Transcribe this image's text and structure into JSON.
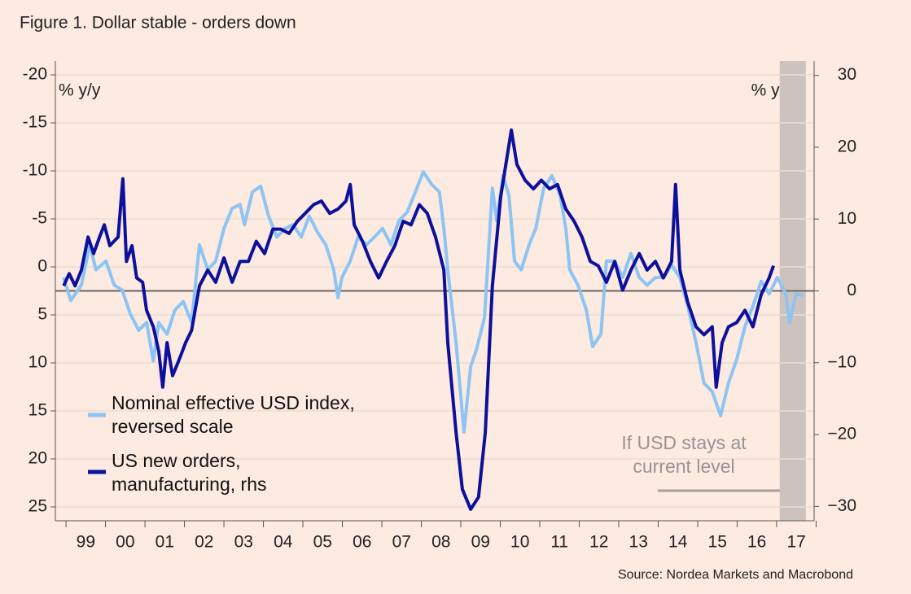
{
  "chart_data": {
    "type": "line",
    "title": "Figure 1. Dollar stable - orders down",
    "source": "Source: Nordea Markets and Macrobond",
    "annotation": "If USD stays at current level",
    "ylabel": "% y/y",
    "y2label": "% y/y",
    "xlim": [
      1998.73,
      2017.95
    ],
    "xticks": [
      {
        "value": 1999.5,
        "label": "99"
      },
      {
        "value": 2000.5,
        "label": "00"
      },
      {
        "value": 2001.5,
        "label": "01"
      },
      {
        "value": 2002.5,
        "label": "02"
      },
      {
        "value": 2003.5,
        "label": "03"
      },
      {
        "value": 2004.5,
        "label": "04"
      },
      {
        "value": 2005.5,
        "label": "05"
      },
      {
        "value": 2006.5,
        "label": "06"
      },
      {
        "value": 2007.5,
        "label": "07"
      },
      {
        "value": 2008.5,
        "label": "08"
      },
      {
        "value": 2009.5,
        "label": "09"
      },
      {
        "value": 2010.5,
        "label": "10"
      },
      {
        "value": 2011.5,
        "label": "11"
      },
      {
        "value": 2012.5,
        "label": "12"
      },
      {
        "value": 2013.5,
        "label": "13"
      },
      {
        "value": 2014.5,
        "label": "14"
      },
      {
        "value": 2015.5,
        "label": "15"
      },
      {
        "value": 2016.5,
        "label": "16"
      },
      {
        "value": 2017.5,
        "label": "17"
      }
    ],
    "xminorticks": [
      1999,
      2000,
      2001,
      2002,
      2003,
      2004,
      2005,
      2006,
      2007,
      2008,
      2009,
      2010,
      2011,
      2012,
      2013,
      2014,
      2015,
      2016,
      2017,
      2018
    ],
    "ylim": [
      26.44,
      -21.44
    ],
    "yticks": [
      -20,
      -15,
      -10,
      -5,
      0,
      5,
      10,
      15,
      20,
      25
    ],
    "y2lim": [
      -32,
      32
    ],
    "y2ticks": [
      30,
      20,
      10,
      0,
      {
        "value": -10,
        "label": "−10"
      },
      {
        "value": -20,
        "label": "−20"
      },
      {
        "value": -30,
        "label": "−30"
      }
    ],
    "grid": true,
    "shaded_xlim": [
      2017.08,
      2017.74
    ],
    "series": [
      {
        "name": "Nominal effective USD index, reversed scale",
        "color": "#8cc4f4",
        "axis": "y",
        "x": [
          1998.94,
          1999.12,
          1999.39,
          1999.6,
          1999.76,
          2000.01,
          2000.22,
          2000.42,
          2000.63,
          2000.84,
          2001.04,
          2001.21,
          2001.35,
          2001.56,
          2001.76,
          2001.97,
          2002.18,
          2002.38,
          2002.59,
          2002.79,
          2003.0,
          2003.21,
          2003.41,
          2003.52,
          2003.72,
          2003.93,
          2004.13,
          2004.34,
          2004.55,
          2004.75,
          2004.96,
          2005.16,
          2005.37,
          2005.58,
          2005.78,
          2005.89,
          2005.99,
          2006.2,
          2006.4,
          2006.61,
          2006.81,
          2007.02,
          2007.23,
          2007.43,
          2007.64,
          2007.85,
          2008.05,
          2008.26,
          2008.46,
          2008.57,
          2008.67,
          2008.88,
          2009.08,
          2009.25,
          2009.39,
          2009.6,
          2009.8,
          2009.91,
          2010.07,
          2010.22,
          2010.36,
          2010.53,
          2010.73,
          2010.9,
          2011.1,
          2011.31,
          2011.52,
          2011.66,
          2011.76,
          2011.97,
          2012.18,
          2012.34,
          2012.55,
          2012.69,
          2012.9,
          2013.1,
          2013.31,
          2013.52,
          2013.72,
          2013.93,
          2014.13,
          2014.34,
          2014.55,
          2014.75,
          2014.96,
          2015.16,
          2015.37,
          2015.58,
          2015.78,
          2015.99,
          2016.2,
          2016.4,
          2016.61,
          2016.81,
          2017.02,
          2017.23,
          2017.33,
          2017.49,
          2017.68
        ],
        "values": [
          1.1,
          3.5,
          1.9,
          -2.3,
          0.3,
          -0.6,
          1.9,
          2.4,
          4.9,
          6.6,
          5.8,
          9.8,
          5.8,
          7,
          4.5,
          3.6,
          5.8,
          -2.3,
          0.3,
          -0.6,
          -4,
          -6.1,
          -6.5,
          -4.4,
          -7.8,
          -8.4,
          -5.3,
          -3.1,
          -4,
          -4.4,
          -3.1,
          -5.3,
          -3.6,
          -2.3,
          0.3,
          3.2,
          1.1,
          -0.6,
          -3.1,
          -2.3,
          -3.1,
          -4,
          -2.3,
          -4.8,
          -5.7,
          -7.8,
          -9.9,
          -8.6,
          -7.8,
          -4,
          0.3,
          7.9,
          17.2,
          10.4,
          8.7,
          5.3,
          -8.2,
          -4.8,
          -9.5,
          -7.4,
          -0.6,
          0.3,
          -2.3,
          -4,
          -8.2,
          -9.5,
          -7.4,
          -4,
          0.3,
          1.9,
          4.5,
          8.3,
          7,
          -0.6,
          -0.6,
          1.1,
          -1.4,
          1.1,
          1.9,
          1.1,
          1.1,
          -0.2,
          1.1,
          4.1,
          7.9,
          12.1,
          13,
          15.5,
          12.1,
          9.6,
          6.2,
          4.1,
          1.5,
          2.8,
          1.1,
          2.8,
          5.8,
          2.8,
          3
        ]
      },
      {
        "name": "US new orders, manufacturing, rhs",
        "color": "#0d109c",
        "axis": "y2",
        "x": [
          1998.94,
          1999.08,
          1999.23,
          1999.39,
          1999.56,
          1999.7,
          1999.85,
          1999.97,
          2000.11,
          2000.32,
          2000.44,
          2000.53,
          2000.67,
          2000.79,
          2000.94,
          2001.04,
          2001.21,
          2001.35,
          2001.45,
          2001.56,
          2001.7,
          2001.87,
          2002.03,
          2002.18,
          2002.38,
          2002.59,
          2002.79,
          2003.0,
          2003.21,
          2003.41,
          2003.62,
          2003.82,
          2004.03,
          2004.24,
          2004.44,
          2004.65,
          2004.86,
          2005.06,
          2005.27,
          2005.47,
          2005.68,
          2005.89,
          2006.09,
          2006.2,
          2006.3,
          2006.51,
          2006.71,
          2006.92,
          2007.12,
          2007.33,
          2007.54,
          2007.74,
          2007.95,
          2008.15,
          2008.36,
          2008.57,
          2008.67,
          2008.88,
          2009.04,
          2009.25,
          2009.45,
          2009.62,
          2009.8,
          2010.01,
          2010.11,
          2010.28,
          2010.42,
          2010.63,
          2010.84,
          2011.04,
          2011.25,
          2011.45,
          2011.66,
          2011.87,
          2012.07,
          2012.28,
          2012.48,
          2012.69,
          2012.9,
          2013.1,
          2013.31,
          2013.52,
          2013.72,
          2013.93,
          2014.13,
          2014.34,
          2014.44,
          2014.55,
          2014.75,
          2014.96,
          2015.16,
          2015.37,
          2015.47,
          2015.62,
          2015.78,
          2015.99,
          2016.2,
          2016.4,
          2016.61,
          2016.81,
          2016.92
        ],
        "values": [
          0.7,
          2.4,
          0.7,
          2.9,
          7.5,
          5.2,
          7.5,
          9.2,
          6.3,
          7.5,
          15.6,
          4.1,
          6.3,
          1.8,
          1.2,
          -2.7,
          -5,
          -8.4,
          -13.4,
          -7.2,
          -11.8,
          -9.5,
          -7.2,
          -5.5,
          0.7,
          2.9,
          1.2,
          4.6,
          1.2,
          4.1,
          4.1,
          6.9,
          5.2,
          8.6,
          8.6,
          8,
          9.7,
          10.8,
          12,
          12.5,
          10.8,
          11.4,
          12.5,
          14.8,
          9.2,
          6.9,
          4.1,
          1.8,
          4.1,
          6.3,
          9.7,
          9.2,
          12,
          10.8,
          7.5,
          2.9,
          -7.2,
          -19.7,
          -27.6,
          -30.4,
          -28.7,
          -19.7,
          0.7,
          13.1,
          16.5,
          22.4,
          17.6,
          15.4,
          14.2,
          15.4,
          14.2,
          14.8,
          11.4,
          9.7,
          7.5,
          4.1,
          3.5,
          1.2,
          4.1,
          0.1,
          2.9,
          5.2,
          2.9,
          4.1,
          1.8,
          4.1,
          14.8,
          2.9,
          -1.6,
          -5,
          -6.1,
          -5,
          -13.4,
          -7.2,
          -5,
          -4.4,
          -2.7,
          -5,
          -0.5,
          1.8,
          3.5
        ]
      }
    ]
  }
}
